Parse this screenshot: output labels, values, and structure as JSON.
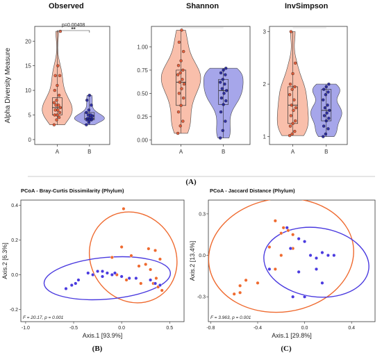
{
  "panel_labels": [
    "(A)",
    "(B)",
    "(C)"
  ],
  "colors": {
    "A": "#f28c6b",
    "A_fill": "#f9b9a3",
    "B": "#3333cc",
    "B_fill": "#9d9de8",
    "B_point": "#1b1b9a",
    "A_point": "#e4502a",
    "pcoa_A": "#ef6a2f",
    "pcoa_B": "#4a3adf"
  },
  "chart_data": [
    {
      "type": "violin",
      "title": "Observed",
      "ylabel": "Alpha Diversity Measure",
      "categories": [
        "A",
        "B"
      ],
      "ylim": [
        -1,
        23
      ],
      "yticks": [
        0,
        5,
        10,
        15,
        20
      ],
      "annotation": {
        "text": "p=0.00408",
        "stars": "**"
      },
      "groups": [
        {
          "name": "A",
          "min": 3,
          "q1": 5,
          "median": 6.5,
          "q3": 8.5,
          "max": 22,
          "points": [
            3,
            4,
            4.5,
            5,
            5,
            5.5,
            6,
            6,
            6.5,
            7,
            7,
            7.5,
            8,
            9,
            10,
            11,
            13,
            13,
            15,
            22
          ]
        },
        {
          "name": "B",
          "min": 3,
          "q1": 4,
          "median": 4.3,
          "q3": 5.5,
          "max": 9,
          "points": [
            3,
            3.5,
            4,
            4,
            4,
            4.2,
            4.3,
            4.5,
            4.8,
            5,
            5,
            5.5,
            6,
            7,
            8,
            9
          ]
        }
      ]
    },
    {
      "type": "violin",
      "title": "Shannon",
      "categories": [
        "A",
        "B"
      ],
      "ylim": [
        -0.05,
        1.22
      ],
      "yticks": [
        0.0,
        0.25,
        0.5,
        0.75,
        1.0
      ],
      "ytick_labels": [
        "0.00",
        "0.25",
        "0.50",
        "0.75",
        "1.00"
      ],
      "groups": [
        {
          "name": "A",
          "min": 0.07,
          "q1": 0.37,
          "median": 0.62,
          "q3": 0.75,
          "max": 1.18,
          "points": [
            0.07,
            0.15,
            0.2,
            0.3,
            0.37,
            0.45,
            0.5,
            0.55,
            0.6,
            0.62,
            0.65,
            0.7,
            0.72,
            0.75,
            0.8,
            0.85,
            0.95,
            1.05,
            1.18
          ]
        },
        {
          "name": "B",
          "min": 0.02,
          "q1": 0.38,
          "median": 0.53,
          "q3": 0.65,
          "max": 0.77,
          "points": [
            0.02,
            0.1,
            0.2,
            0.3,
            0.38,
            0.42,
            0.45,
            0.5,
            0.53,
            0.55,
            0.6,
            0.62,
            0.65,
            0.7,
            0.72,
            0.75,
            0.77
          ]
        }
      ]
    },
    {
      "type": "violin",
      "title": "InvSimpson",
      "categories": [
        "A",
        "B"
      ],
      "ylim": [
        0.85,
        3.1
      ],
      "yticks": [
        1,
        2,
        3
      ],
      "groups": [
        {
          "name": "A",
          "min": 1.02,
          "q1": 1.25,
          "median": 1.6,
          "q3": 1.95,
          "max": 3.0,
          "points": [
            1.02,
            1.05,
            1.1,
            1.2,
            1.25,
            1.3,
            1.4,
            1.5,
            1.55,
            1.6,
            1.7,
            1.8,
            1.9,
            1.95,
            2.0,
            2.2,
            2.4,
            3.0
          ]
        },
        {
          "name": "B",
          "min": 1.0,
          "q1": 1.3,
          "median": 1.5,
          "q3": 1.9,
          "max": 2.0,
          "points": [
            1.0,
            1.05,
            1.15,
            1.2,
            1.3,
            1.35,
            1.4,
            1.45,
            1.5,
            1.55,
            1.6,
            1.7,
            1.8,
            1.85,
            1.9,
            1.95,
            2.0
          ]
        }
      ]
    },
    {
      "type": "scatter",
      "title": "PCoA - Bray-Curtis Dissimilarity (Phylum)",
      "xlabel": "Axis.1   [93.9%]",
      "ylabel": "Axis.2   [6.3%]",
      "xlim": [
        -1.05,
        0.65
      ],
      "ylim": [
        -0.27,
        0.43
      ],
      "xticks": [
        -1.0,
        -0.5,
        0.0,
        0.5
      ],
      "xtick_labels": [
        "-1.0",
        "-0.5",
        "0.0",
        "0.5"
      ],
      "yticks": [
        -0.2,
        0.0,
        0.2,
        0.4
      ],
      "ytick_labels": [
        "-0.2",
        "0.0",
        "0.2",
        "0.4"
      ],
      "stat": "F = 20.17, p = 0.001",
      "ellipses": [
        {
          "group": "A",
          "cx": 0.12,
          "cy": 0.1,
          "rx": 0.44,
          "ry": 0.27,
          "angle": 35
        },
        {
          "group": "B",
          "cx": -0.15,
          "cy": -0.02,
          "rx": 0.66,
          "ry": 0.12,
          "angle": 5
        }
      ],
      "groups": [
        {
          "name": "A",
          "points": [
            [
              0.02,
              0.38
            ],
            [
              0.0,
              0.16
            ],
            [
              0.28,
              0.15
            ],
            [
              0.35,
              0.14
            ],
            [
              0.4,
              0.09
            ],
            [
              -0.1,
              0.1
            ],
            [
              0.1,
              0.11
            ],
            [
              0.25,
              0.06
            ],
            [
              0.18,
              0.05
            ],
            [
              0.3,
              0.03
            ],
            [
              0.36,
              -0.02
            ],
            [
              0.33,
              -0.05
            ],
            [
              0.2,
              -0.05
            ],
            [
              0.05,
              -0.03
            ],
            [
              -0.05,
              0.0
            ],
            [
              0.38,
              -0.07
            ],
            [
              0.42,
              -0.09
            ]
          ]
        },
        {
          "name": "B",
          "points": [
            [
              -0.58,
              -0.08
            ],
            [
              -0.52,
              -0.06
            ],
            [
              -0.48,
              -0.05
            ],
            [
              -0.45,
              -0.03
            ],
            [
              -0.35,
              0.01
            ],
            [
              -0.3,
              0.0
            ],
            [
              -0.25,
              0.02
            ],
            [
              -0.2,
              0.02
            ],
            [
              -0.15,
              0.01
            ],
            [
              -0.1,
              0.0
            ],
            [
              -0.07,
              0.01
            ],
            [
              -0.2,
              -0.01
            ],
            [
              0.0,
              -0.01
            ],
            [
              0.08,
              -0.02
            ],
            [
              0.15,
              -0.02
            ],
            [
              0.3,
              -0.03
            ],
            [
              0.35,
              -0.05
            ],
            [
              0.4,
              -0.06
            ]
          ]
        }
      ]
    },
    {
      "type": "scatter",
      "title": "PCoA - Jaccard Distance (Phylum)",
      "xlabel": "Axis.1   [29.8%]",
      "ylabel": "Axis.2   [13.4%]",
      "xlim": [
        -0.82,
        0.6
      ],
      "ylim": [
        -0.48,
        0.4
      ],
      "xticks": [
        -0.8,
        -0.4,
        0.0,
        0.4
      ],
      "xtick_labels": [
        "-0.8",
        "-0.4",
        "0.0",
        "0.4"
      ],
      "yticks": [
        -0.3,
        0.0,
        0.3
      ],
      "ytick_labels": [
        "-0.3",
        "0.0",
        "0.3"
      ],
      "stat": "F = 3.963, p = 0.001",
      "ellipses": [
        {
          "group": "A",
          "cx": -0.2,
          "cy": 0.0,
          "rx": 0.62,
          "ry": 0.41,
          "angle": 8
        },
        {
          "group": "B",
          "cx": 0.1,
          "cy": -0.05,
          "rx": 0.45,
          "ry": 0.25,
          "angle": -8
        }
      ],
      "groups": [
        {
          "name": "A",
          "points": [
            [
              -0.25,
              0.25
            ],
            [
              -0.18,
              0.2
            ],
            [
              -0.2,
              0.16
            ],
            [
              -0.14,
              0.18
            ],
            [
              -0.1,
              0.15
            ],
            [
              -0.05,
              0.12
            ],
            [
              -0.3,
              0.06
            ],
            [
              -0.5,
              -0.18
            ],
            [
              -0.55,
              -0.22
            ],
            [
              -0.6,
              -0.28
            ],
            [
              -0.55,
              -0.27
            ],
            [
              -0.2,
              0.0
            ],
            [
              -0.25,
              -0.1
            ],
            [
              -0.4,
              -0.2
            ],
            [
              -0.1,
              0.05
            ]
          ]
        },
        {
          "name": "B",
          "points": [
            [
              -0.15,
              0.2
            ],
            [
              -0.05,
              0.12
            ],
            [
              0.0,
              0.1
            ],
            [
              -0.12,
              0.05
            ],
            [
              0.05,
              0.0
            ],
            [
              0.15,
              0.02
            ],
            [
              0.2,
              0.0
            ],
            [
              0.25,
              0.0
            ],
            [
              0.1,
              -0.02
            ],
            [
              -0.05,
              -0.12
            ],
            [
              0.0,
              -0.3
            ],
            [
              0.1,
              -0.1
            ],
            [
              0.15,
              -0.2
            ],
            [
              -0.1,
              -0.3
            ],
            [
              -0.3,
              -0.1
            ]
          ]
        }
      ]
    }
  ]
}
